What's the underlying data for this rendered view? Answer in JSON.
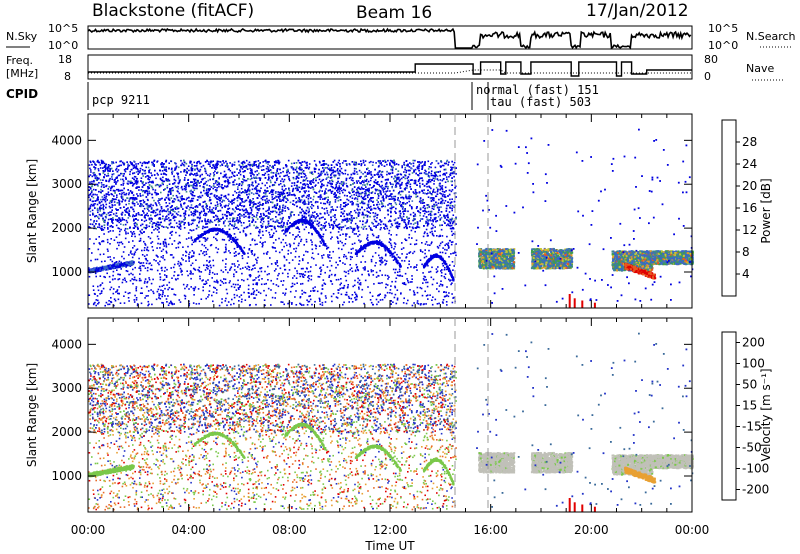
{
  "header": {
    "title": "Blackstone (fitACF)",
    "beam": "Beam 16",
    "date": "17/Jan/2012"
  },
  "status_panels": {
    "nsky_label": "N.Sky",
    "nsky_ticks": [
      "10^5",
      "10^0"
    ],
    "nsearch_label": "N.Search",
    "nsearch_ticks": [
      "10^5",
      "10^0"
    ],
    "freq_label": "Freq.",
    "freq_unit": "[MHz]",
    "freq_ticks": [
      "18",
      "8"
    ],
    "nave_label": "Nave",
    "nave_ticks": [
      "80",
      "0"
    ],
    "cpid_label": "CPID",
    "cpid_entries": [
      {
        "name": "pcp 9211",
        "start_hour": 0.0
      },
      {
        "name": "normal (fast) 151",
        "start_hour": 15.3
      },
      {
        "name": "tau (fast) 503",
        "start_hour": 15.6
      }
    ]
  },
  "chart_data": [
    {
      "type": "heatmap",
      "name": "power",
      "xlabel": "",
      "ylabel": "Slant Range [km]",
      "xlim": [
        0,
        24
      ],
      "ylim": [
        180,
        4600
      ],
      "yticks": [
        1000,
        2000,
        3000,
        4000
      ],
      "colorbar_label": "Power [dB]",
      "colorbar_ticks": [
        "4",
        "8",
        "12",
        "16",
        "20",
        "24",
        "28"
      ],
      "colorbar_range": [
        0,
        30
      ],
      "colors": [
        "#0000e0",
        "#3a68c8",
        "#3e8a86",
        "#3fa04a",
        "#c8c832",
        "#e89a28",
        "#e85a20",
        "#e00000"
      ],
      "data_gap_hours": [
        14.6,
        15.3
      ]
    },
    {
      "type": "heatmap",
      "name": "velocity",
      "xlabel": "Time UT",
      "ylabel": "Slant Range [km]",
      "xlim": [
        0,
        24
      ],
      "ylim": [
        180,
        4600
      ],
      "yticks": [
        1000,
        2000,
        3000,
        4000
      ],
      "xticks": [
        "00:00",
        "04:00",
        "08:00",
        "12:00",
        "16:00",
        "20:00",
        "00:00"
      ],
      "colorbar_label": "Velocity [m s⁻¹]",
      "colorbar_ticks": [
        "200",
        "100",
        "50",
        "15",
        "-15",
        "-50",
        "-100",
        "-200"
      ],
      "colors": [
        "#2232c8",
        "#3a6a9a",
        "#3e8a70",
        "#7ac84a",
        "#c8c8c0",
        "#e8a032",
        "#e86a28",
        "#e00000"
      ]
    }
  ],
  "colors": {
    "ground_scatter": "#c0c0b8",
    "axis": "#000000"
  }
}
